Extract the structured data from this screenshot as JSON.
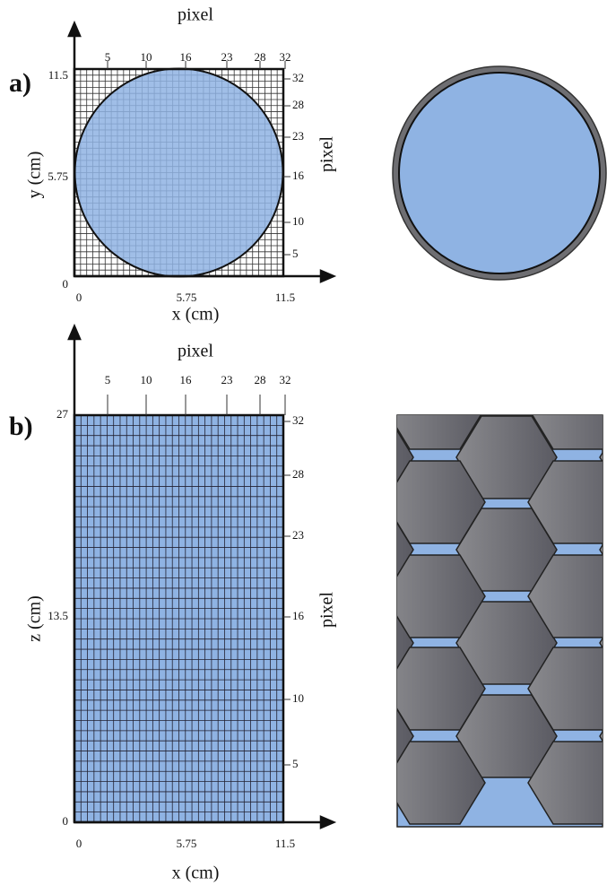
{
  "panels": [
    {
      "label": "a)",
      "top_axis_label": "pixel",
      "top_ticks": [
        "5",
        "10",
        "16",
        "23",
        "28",
        "32"
      ],
      "left_axis_label": "y (cm)",
      "left_ticks": [
        "11.5",
        "5.75",
        "0"
      ],
      "right_axis_label": "pixel",
      "right_ticks": [
        "32",
        "28",
        "23",
        "16",
        "10",
        "5"
      ],
      "bottom_ticks": [
        "0",
        "5.75",
        "11.5"
      ],
      "bottom_axis_label": "x (cm)"
    },
    {
      "label": "b)",
      "top_axis_label": "pixel",
      "top_ticks": [
        "5",
        "10",
        "16",
        "23",
        "28",
        "32"
      ],
      "left_axis_label": "z (cm)",
      "left_ticks": [
        "27",
        "13.5",
        "0"
      ],
      "right_axis_label": "pixel",
      "right_ticks": [
        "32",
        "28",
        "23",
        "16",
        "10",
        "5"
      ],
      "bottom_ticks": [
        "0",
        "5.75",
        "11.5"
      ],
      "bottom_axis_label": "x (cm)"
    }
  ]
}
